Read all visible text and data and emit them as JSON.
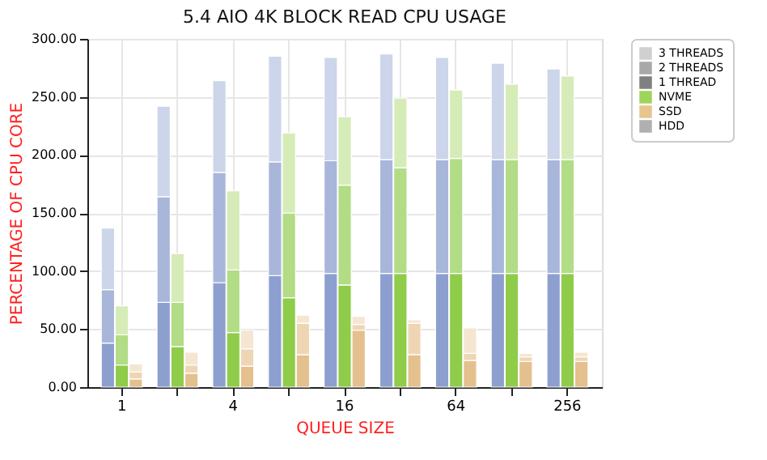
{
  "chart_data": {
    "type": "bar",
    "stacked": true,
    "title": "5.4 AIO 4K BLOCK READ CPU USAGE",
    "xlabel": "QUEUE SIZE",
    "ylabel": "PERCENTAGE OF CPU CORE",
    "categories": [
      null,
      "1",
      null,
      null,
      null,
      null,
      null,
      null,
      null,
      "4",
      null,
      null,
      null,
      null,
      null,
      null,
      null,
      "16",
      null,
      null,
      null,
      null,
      null,
      null,
      null,
      "64",
      null,
      null,
      null,
      null,
      null,
      null,
      null,
      "256",
      null
    ],
    "series": [
      {
        "name": "3 THREADS",
        "color": "#d0d0d0",
        "values": [
          null,
          null,
          null,
          null,
          null,
          null,
          null,
          null,
          null,
          null,
          null,
          null,
          null,
          null,
          null,
          null,
          null,
          null,
          null,
          null,
          null,
          null,
          null,
          null,
          null,
          null,
          null,
          null,
          null,
          null,
          null,
          null,
          null,
          null,
          null
        ]
      },
      {
        "name": "2 THREADS",
        "color": "#a8a8a8",
        "values": [
          null,
          null,
          null,
          null,
          null,
          null,
          null,
          null,
          null,
          null,
          null,
          null,
          null,
          null,
          null,
          null,
          null,
          null,
          null,
          null,
          null,
          null,
          null,
          null,
          null,
          null,
          null,
          null,
          null,
          null,
          null,
          null,
          null,
          null,
          null
        ]
      },
      {
        "name": "1 THREAD",
        "color": "#808080",
        "values": [
          null,
          null,
          null,
          null,
          null,
          null,
          null,
          null,
          null,
          null,
          null,
          null,
          null,
          null,
          null,
          null,
          null,
          null,
          null,
          null,
          null,
          null,
          null,
          null,
          null,
          null,
          null,
          null,
          null,
          null,
          null,
          null,
          null,
          null,
          null
        ]
      },
      {
        "values": [
          38,
          19,
          7,
          null,
          73,
          35,
          12,
          null,
          90,
          47,
          18,
          null,
          96,
          77,
          28,
          null,
          98,
          88,
          49,
          null,
          98,
          98,
          28,
          null,
          98,
          98,
          23,
          null,
          98,
          98,
          22,
          null,
          98,
          98,
          22
        ],
        "colors": [
          "#8c9fcf",
          "#8fcc4a",
          "#e4c08e",
          null,
          "#8c9fcf",
          "#8fcc4a",
          "#e4c08e",
          null,
          "#8c9fcf",
          "#8fcc4a",
          "#e4c08e",
          null,
          "#8c9fcf",
          "#8fcc4a",
          "#e4c08e",
          null,
          "#8c9fcf",
          "#8fcc4a",
          "#e4c08e",
          null,
          "#8c9fcf",
          "#8fcc4a",
          "#e4c08e",
          null,
          "#8c9fcf",
          "#8fcc4a",
          "#e4c08e",
          null,
          "#8c9fcf",
          "#8fcc4a",
          "#e4c08e",
          null,
          "#8c9fcf",
          "#8fcc4a",
          "#e4c08e"
        ]
      },
      {
        "values": [
          46,
          26,
          6,
          null,
          91,
          38,
          7,
          null,
          95,
          54,
          15,
          null,
          98,
          73,
          27,
          null,
          97,
          86,
          5,
          null,
          98,
          91,
          27,
          null,
          98,
          99,
          6,
          null,
          98,
          98,
          4,
          null,
          98,
          98,
          4
        ],
        "colors": [
          "#a8b6da",
          "#b2dc85",
          "#eed6b5",
          null,
          "#a8b6da",
          "#b2dc85",
          "#eed6b5",
          null,
          "#a8b6da",
          "#b2dc85",
          "#eed6b5",
          null,
          "#a8b6da",
          "#b2dc85",
          "#eed6b5",
          null,
          "#a8b6da",
          "#b2dc85",
          "#eed6b5",
          null,
          "#a8b6da",
          "#b2dc85",
          "#eed6b5",
          null,
          "#a8b6da",
          "#b2dc85",
          "#eed6b5",
          null,
          "#a8b6da",
          "#b2dc85",
          "#eed6b5",
          null,
          "#a8b6da",
          "#b2dc85",
          "#eed6b5"
        ]
      },
      {
        "values": [
          53,
          25,
          7,
          null,
          78,
          42,
          11,
          null,
          79,
          68,
          16,
          null,
          91,
          69,
          7,
          null,
          89,
          59,
          7,
          null,
          91,
          60,
          3,
          null,
          88,
          59,
          22,
          null,
          83,
          65,
          3,
          null,
          78,
          72,
          4
        ],
        "colors": [
          "#ccd5ea",
          "#d6ecb8",
          "#f5e6d2",
          null,
          "#ccd5ea",
          "#d6ecb8",
          "#f5e6d2",
          null,
          "#ccd5ea",
          "#d6ecb8",
          "#f5e6d2",
          null,
          "#ccd5ea",
          "#d6ecb8",
          "#f5e6d2",
          null,
          "#ccd5ea",
          "#d6ecb8",
          "#f5e6d2",
          null,
          "#ccd5ea",
          "#d6ecb8",
          "#f5e6d2",
          null,
          "#ccd5ea",
          "#d6ecb8",
          "#f5e6d2",
          null,
          "#ccd5ea",
          "#d6ecb8",
          "#f5e6d2",
          null,
          "#ccd5ea",
          "#d6ecb8",
          "#f5e6d2"
        ]
      },
      {
        "name": "NVME",
        "color": "#9ed45a",
        "values": [
          null,
          null,
          null,
          null,
          null,
          null,
          null,
          null,
          null,
          null,
          null,
          null,
          null,
          null,
          null,
          null,
          null,
          null,
          null,
          null,
          null,
          null,
          null,
          null,
          null,
          null,
          null,
          null,
          null,
          null,
          null,
          null,
          null,
          null,
          null
        ]
      },
      {
        "name": "SSD",
        "color": "#e8c48f",
        "values": [
          null,
          null,
          null,
          null,
          null,
          null,
          null,
          null,
          null,
          null,
          null,
          null,
          null,
          null,
          null,
          null,
          null,
          null,
          null,
          null,
          null,
          null,
          null,
          null,
          null,
          null,
          null,
          null,
          null,
          null,
          null,
          null,
          null,
          null,
          null
        ]
      },
      {
        "name": "HDD",
        "color": "#b0b0b0",
        "values": [
          null,
          null,
          null,
          null,
          null,
          null,
          null,
          null,
          null,
          null,
          null,
          null,
          null,
          null,
          null,
          null,
          null,
          null,
          null,
          null,
          null,
          null,
          null,
          null,
          null,
          null,
          null,
          null,
          null,
          null,
          null,
          null,
          null,
          null,
          null
        ]
      }
    ],
    "legend": "right",
    "ylim": [
      0,
      300
    ],
    "yticks": [
      {
        "value": 0,
        "label": "0.00"
      },
      {
        "value": 50,
        "label": "50.00"
      },
      {
        "value": 100,
        "label": "100.00"
      },
      {
        "value": 150,
        "label": "150.00"
      },
      {
        "value": 200,
        "label": "200.00"
      },
      {
        "value": 250,
        "label": "250.00"
      },
      {
        "value": 300,
        "label": "300.00"
      }
    ],
    "grid": true
  }
}
